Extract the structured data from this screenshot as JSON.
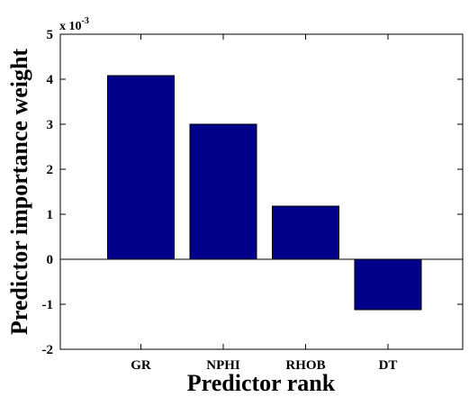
{
  "chart_data": {
    "type": "bar",
    "categories": [
      "GR",
      "NPHI",
      "RHOB",
      "DT"
    ],
    "values": [
      0.00408,
      0.003,
      0.00118,
      -0.00112
    ],
    "xlabel": "Predictor rank",
    "ylabel": "Predictor importance weight",
    "ylim": [
      -0.002,
      0.005
    ],
    "yticks": [
      "-2",
      "-1",
      "0",
      "1",
      "2",
      "3",
      "4",
      "5"
    ],
    "y_multiplier_base": "x 10",
    "y_multiplier_exponent": "-3",
    "bar_color": "#00008B",
    "grid": false,
    "legend": "none"
  }
}
